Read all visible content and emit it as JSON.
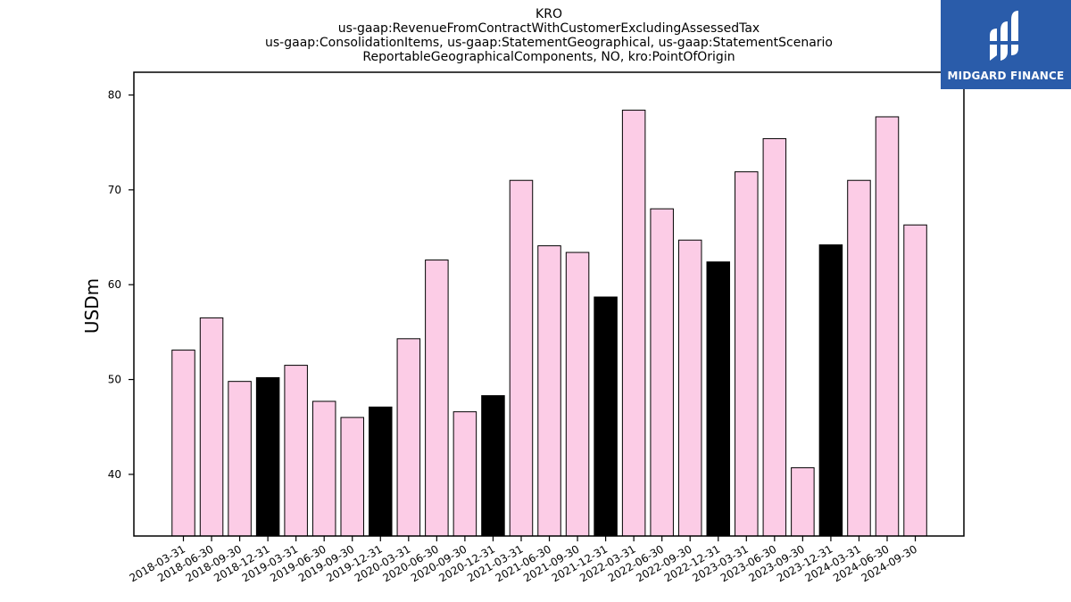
{
  "brand": {
    "name": "MIDGARD FINANCE",
    "bg_color": "#2a5caa",
    "icon": "midgard-logo-icon"
  },
  "chart_data": {
    "type": "bar",
    "title_lines": [
      "KRO",
      "us-gaap:RevenueFromContractWithCustomerExcludingAssessedTax",
      "us-gaap:ConsolidationItems, us-gaap:StatementGeographical, us-gaap:StatementScenario",
      "ReportableGeographicalComponents, NO, kro:PointOfOrigin"
    ],
    "xlabel": "",
    "ylabel": "USDm",
    "ylim": [
      33.5,
      82.4
    ],
    "yticks": [
      40,
      50,
      60,
      70,
      80
    ],
    "grid": false,
    "colors": {
      "quarter": "#fccce6",
      "year_end": "#000000",
      "edge": "#000000"
    },
    "categories": [
      "2018-03-31",
      "2018-06-30",
      "2018-09-30",
      "2018-12-31",
      "2019-03-31",
      "2019-06-30",
      "2019-09-30",
      "2019-12-31",
      "2020-03-31",
      "2020-06-30",
      "2020-09-30",
      "2020-12-31",
      "2021-03-31",
      "2021-06-30",
      "2021-09-30",
      "2021-12-31",
      "2022-03-31",
      "2022-06-30",
      "2022-09-30",
      "2022-12-31",
      "2023-03-31",
      "2023-06-30",
      "2023-09-30",
      "2023-12-31",
      "2024-03-31",
      "2024-06-30",
      "2024-09-30"
    ],
    "values": [
      53.1,
      56.5,
      49.8,
      50.2,
      51.5,
      47.7,
      46.0,
      47.1,
      54.3,
      62.6,
      46.6,
      48.3,
      71.0,
      64.1,
      63.4,
      58.7,
      78.4,
      68.0,
      64.7,
      62.4,
      71.9,
      75.4,
      40.7,
      64.2,
      71.0,
      77.7,
      66.3
    ],
    "year_end": [
      false,
      false,
      false,
      true,
      false,
      false,
      false,
      true,
      false,
      false,
      false,
      true,
      false,
      false,
      false,
      true,
      false,
      false,
      false,
      true,
      false,
      false,
      false,
      true,
      false,
      false,
      false
    ]
  }
}
